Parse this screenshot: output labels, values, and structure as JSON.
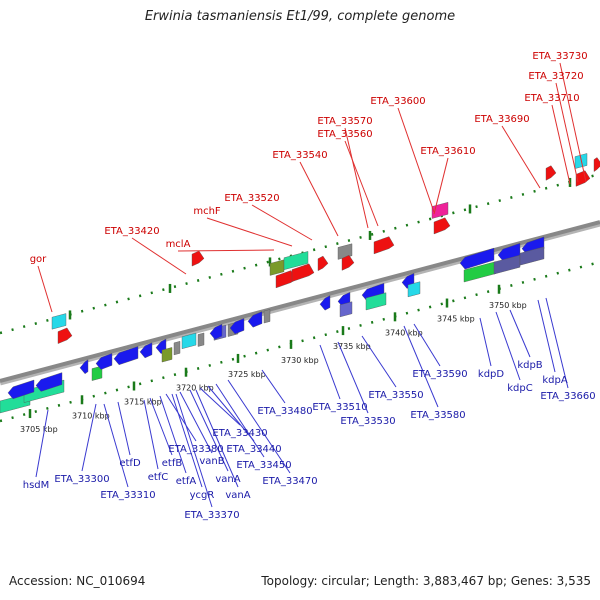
{
  "title": "Erwinia tasmaniensis Et1/99, complete genome",
  "footer": {
    "accession": "Accession: NC_010694",
    "topology": "Topology: circular; Length: 3,883,467 bp; Genes: 3,535"
  },
  "colors": {
    "backbone": "#888888",
    "tick": "#1a7a1a",
    "red_label": "#cc0000",
    "blue_label": "#1a1aa8",
    "red_line": "#e03030",
    "blue_line": "#3a3ad0"
  },
  "ticks": [
    "3705 kbp",
    "3710 kbp",
    "3715 kbp",
    "3720 kbp",
    "3725 kbp",
    "3730 kbp",
    "3735 kbp",
    "3740 kbp",
    "3745 kbp",
    "3750 kbp"
  ],
  "top_labels": [
    "gor",
    "ETA_33420",
    "mclA",
    "mchF",
    "ETA_33520",
    "ETA_33540",
    "ETA_33570",
    "ETA_33560",
    "ETA_33600",
    "ETA_33610",
    "ETA_33690",
    "ETA_33730",
    "ETA_33720",
    "ETA_33710"
  ],
  "bottom_labels": [
    "hsdM",
    "ETA_33300",
    "ETA_33310",
    "etfD",
    "etfC",
    "etfB",
    "etfA",
    "ETA_33380",
    "ycgR",
    "ETA_33370",
    "vanB",
    "vanA",
    "vanA",
    "ETA_33430",
    "ETA_33440",
    "ETA_33450",
    "ETA_33470",
    "ETA_33480",
    "ETA_33510",
    "ETA_33530",
    "ETA_33550",
    "ETA_33580",
    "ETA_33590",
    "kdpD",
    "kdpC",
    "kdpB",
    "kdpA",
    "ETA_33660"
  ]
}
